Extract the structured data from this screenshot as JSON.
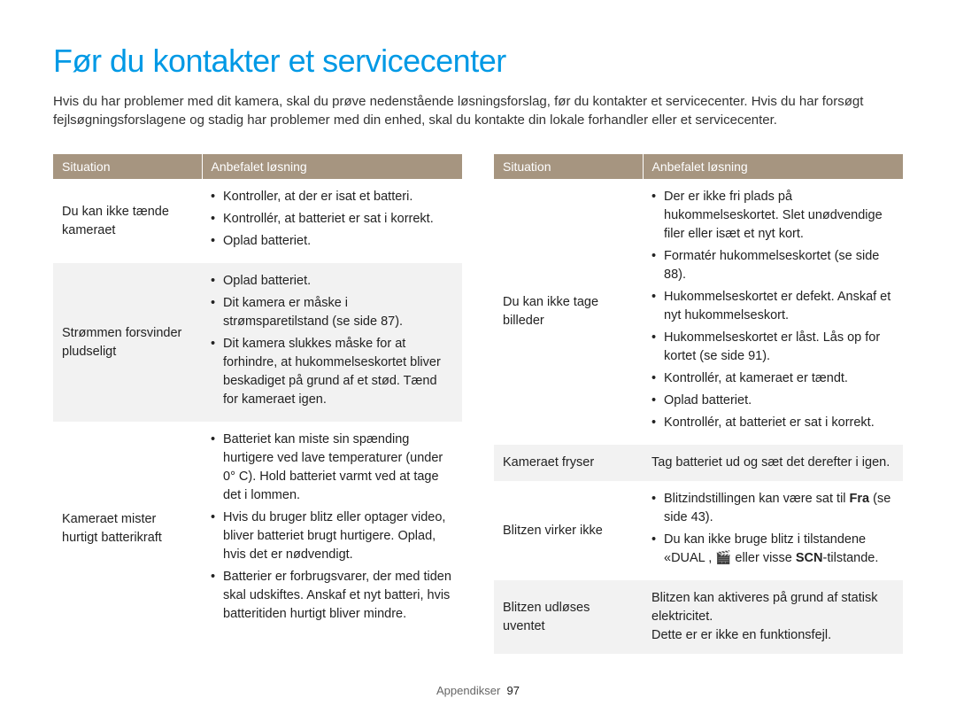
{
  "title": "Før du kontakter et servicecenter",
  "intro": "Hvis du har problemer med dit kamera, skal du prøve nedenstående løsningsforslag, før du kontakter et servicecenter. Hvis du har forsøgt fejlsøgningsforslagene og stadig har problemer med din enhed, skal du kontakte din lokale forhandler eller et servicecenter.",
  "headers": {
    "situation": "Situation",
    "solution": "Anbefalet løsning"
  },
  "left": {
    "rows": [
      {
        "situation": "Du kan ikke tænde kameraet",
        "bullets": [
          "Kontroller, at der er isat et batteri.",
          "Kontrollér, at batteriet er sat i korrekt.",
          "Oplad batteriet."
        ]
      },
      {
        "situation": "Strømmen forsvinder pludseligt",
        "bullets": [
          "Oplad batteriet.",
          "Dit kamera er måske i strømsparetilstand (se side 87).",
          "Dit kamera slukkes måske for at forhindre, at hukommelseskortet bliver beskadiget på grund af et stød. Tænd for kameraet igen."
        ]
      },
      {
        "situation": "Kameraet mister hurtigt batterikraft",
        "bullets": [
          "Batteriet kan miste sin spænding hurtigere ved lave temperaturer (under 0° C). Hold batteriet varmt ved at tage det i lommen.",
          "Hvis du bruger blitz eller optager video, bliver batteriet brugt hurtigere. Oplad, hvis det er nødvendigt.",
          "Batterier er forbrugsvarer, der med tiden skal udskiftes. Anskaf et nyt batteri, hvis batteritiden hurtigt bliver mindre."
        ]
      }
    ]
  },
  "right": {
    "rows": [
      {
        "situation": "Du kan ikke tage billeder",
        "bullets": [
          "Der er ikke fri plads på hukommelseskortet. Slet unødvendige filer eller isæt et nyt kort.",
          "Formatér hukommelseskortet (se side 88).",
          "Hukommelseskortet er defekt. Anskaf et nyt hukommelseskort.",
          "Hukommelseskortet er låst. Lås op for kortet (se side 91).",
          "Kontrollér, at kameraet er tændt.",
          "Oplad batteriet.",
          "Kontrollér, at batteriet er sat i korrekt."
        ]
      },
      {
        "situation": "Kameraet fryser",
        "text": "Tag batteriet ud og sæt det derefter i igen."
      },
      {
        "situation": "Blitzen virker ikke",
        "flash_bullet1_pre": "Blitzindstillingen kan være sat til ",
        "flash_bullet1_bold": "Fra",
        "flash_bullet1_post": " (se side 43).",
        "flash_bullet2_pre": "Du kan ikke bruge blitz i tilstandene ",
        "flash_bullet2_icons": "«DUAL , 🎬",
        "flash_bullet2_mid": " eller visse ",
        "flash_bullet2_scn": "SCN",
        "flash_bullet2_post": "-tilstande."
      },
      {
        "situation": "Blitzen udløses uventet",
        "text": "Blitzen kan aktiveres på grund af statisk elektricitet.\nDette er er ikke en funktionsfejl."
      }
    ]
  },
  "footer": {
    "section": "Appendikser",
    "page": "97"
  },
  "colors": {
    "title": "#0099e5",
    "header_bg": "#a69580",
    "alt_row_bg": "#f2f2f2",
    "text": "#222222"
  }
}
